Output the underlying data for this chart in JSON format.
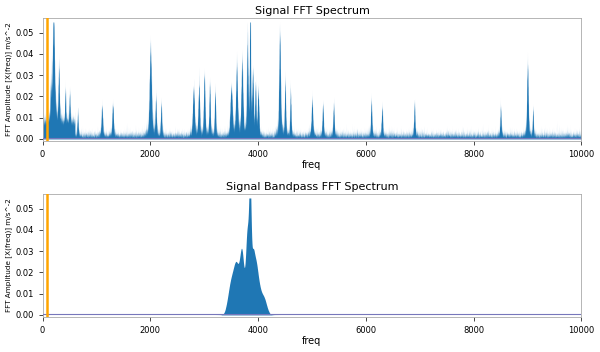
{
  "title1": "Signal FFT Spectrum",
  "title2": "Signal Bandpass FFT Spectrum",
  "xlabel": "freq",
  "ylabel": "FFT Amplitude [X(freq)] m/s^-2",
  "xmin": 0,
  "xmax": 10000,
  "ymin": -0.001,
  "ymax": 0.057,
  "yticks": [
    0.0,
    0.01,
    0.02,
    0.03,
    0.04,
    0.05
  ],
  "vline_x": 80,
  "vline_color": "#FFA500",
  "signal_color": "#1f77b4",
  "hline_color": "#7777bb",
  "background_color": "#ffffff",
  "seed": 0
}
